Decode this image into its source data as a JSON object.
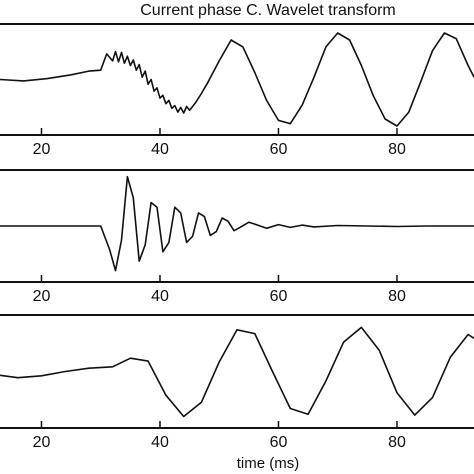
{
  "chart_data": {
    "type": "line",
    "title": "Current phase C. Wavelet transform",
    "xlabel": "time (ms)",
    "xlim": [
      13,
      93
    ],
    "xticks": [
      20,
      40,
      60,
      80
    ],
    "line_color": "#111111",
    "panels": [
      {
        "ylim": [
          -1.15,
          1.15
        ],
        "x": [
          13,
          17,
          21,
          25,
          28,
          30,
          31,
          32,
          32.5,
          33,
          33.5,
          34,
          34.5,
          35,
          35.5,
          36,
          36.5,
          37,
          37.5,
          38,
          38.5,
          39,
          39.5,
          40,
          40.5,
          41,
          41.5,
          42,
          42.5,
          43,
          43.5,
          44,
          44.5,
          45,
          46,
          47,
          48,
          50,
          52,
          54,
          56,
          58,
          60,
          62,
          64,
          66,
          68,
          70,
          72,
          74,
          76,
          78,
          80,
          82,
          84,
          86,
          88,
          90,
          92,
          93
        ],
        "y": [
          0.0,
          -0.03,
          0.02,
          0.1,
          0.18,
          0.2,
          0.55,
          0.4,
          0.6,
          0.38,
          0.58,
          0.35,
          0.5,
          0.3,
          0.42,
          0.2,
          0.32,
          0.05,
          0.18,
          -0.1,
          0.0,
          -0.25,
          -0.18,
          -0.4,
          -0.34,
          -0.52,
          -0.45,
          -0.62,
          -0.56,
          -0.7,
          -0.6,
          -0.72,
          -0.58,
          -0.66,
          -0.5,
          -0.3,
          -0.08,
          0.4,
          0.85,
          0.7,
          0.15,
          -0.45,
          -0.88,
          -0.95,
          -0.55,
          0.05,
          0.7,
          1.0,
          0.85,
          0.3,
          -0.35,
          -0.85,
          -1.0,
          -0.7,
          -0.05,
          0.62,
          1.0,
          0.88,
          0.3,
          0.05
        ]
      },
      {
        "ylim": [
          -1.15,
          1.15
        ],
        "x": [
          13,
          20,
          25,
          30,
          31.5,
          32.5,
          33.5,
          34.5,
          35.5,
          36.5,
          37.5,
          38.5,
          39.5,
          40.5,
          41.5,
          42.5,
          43.5,
          44.5,
          45.5,
          46.5,
          47.5,
          48.5,
          49.5,
          50.5,
          51.5,
          52.5,
          53.5,
          55,
          56.5,
          58,
          60,
          62,
          64,
          66,
          70,
          75,
          80,
          85,
          90,
          93
        ],
        "y": [
          0.0,
          0.0,
          0.0,
          0.0,
          -0.5,
          -0.95,
          -0.3,
          1.05,
          0.6,
          -0.75,
          -0.4,
          0.5,
          0.4,
          -0.55,
          -0.35,
          0.4,
          0.28,
          -0.35,
          -0.22,
          0.28,
          0.2,
          -0.2,
          -0.12,
          0.17,
          0.1,
          -0.1,
          -0.03,
          0.08,
          0.02,
          -0.05,
          0.03,
          -0.03,
          0.02,
          -0.02,
          0.01,
          0.0,
          -0.01,
          0.0,
          0.0,
          0.0
        ]
      },
      {
        "ylim": [
          -1.15,
          1.15
        ],
        "x": [
          13,
          16,
          20,
          24,
          28,
          32,
          35,
          38,
          41,
          44,
          47,
          50,
          53,
          56,
          59,
          62,
          65,
          68,
          71,
          74,
          77,
          80,
          83,
          86,
          89,
          92,
          93
        ],
        "y": [
          -0.08,
          -0.13,
          -0.09,
          0.0,
          0.07,
          0.1,
          0.28,
          0.22,
          -0.5,
          -0.95,
          -0.65,
          0.2,
          0.88,
          0.8,
          0.0,
          -0.78,
          -0.9,
          -0.2,
          0.62,
          0.93,
          0.45,
          -0.45,
          -0.92,
          -0.55,
          0.3,
          0.78,
          0.7
        ]
      }
    ]
  }
}
